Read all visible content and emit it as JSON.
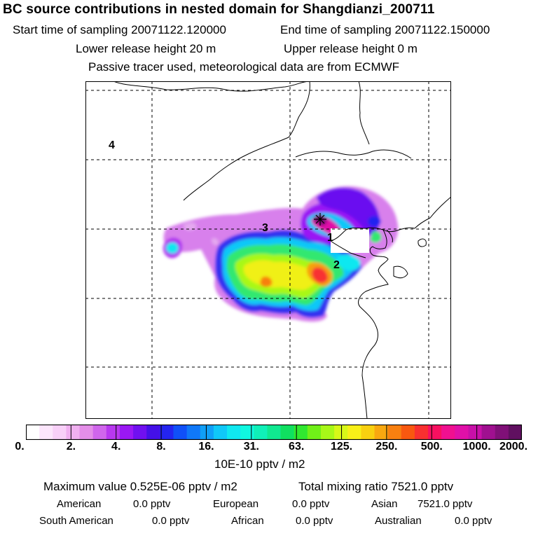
{
  "header": {
    "title": "BC  source contributions in nested domain for Shangdianzi_200711",
    "start_label": "Start time of sampling 20071122.120000",
    "end_label": "End time of sampling 20071122.150000",
    "lower_label": "Lower release height   20 m",
    "upper_label": "Upper release height    0 m",
    "tracer_label": "Passive tracer used, meteorological data are from ECMWF"
  },
  "map": {
    "region_labels": [
      "1",
      "2",
      "3",
      "4"
    ],
    "receptor_marker": "receptor-star-icon",
    "gridlines": "dashed"
  },
  "colorbar": {
    "tick_labels": [
      "0.",
      "2.",
      "4.",
      "8.",
      "16.",
      "31.",
      "63.",
      "125.",
      "250.",
      "500.",
      "1000.",
      "2000."
    ],
    "units": "10E-10 pptv / m2",
    "colors": [
      "#ffffff",
      "#fce6fc",
      "#f8d0f8",
      "#f0b0f0",
      "#e48ee8",
      "#d066ec",
      "#b838f0",
      "#9a18f4",
      "#7010f0",
      "#4410e8",
      "#2424f0",
      "#1050f8",
      "#1078f8",
      "#10a0f8",
      "#10c8f8",
      "#10e8f0",
      "#10f8e0",
      "#10f0b8",
      "#10e890",
      "#10e060",
      "#30e830",
      "#70f018",
      "#a8f818",
      "#d8f818",
      "#f8f018",
      "#f8d010",
      "#f8a810",
      "#f88010",
      "#f85810",
      "#f83030",
      "#f81060",
      "#f01090",
      "#e010a8",
      "#c810a8",
      "#a01090",
      "#801078",
      "#601060"
    ]
  },
  "summary": {
    "max_label": "Maximum value  0.525E-06 pptv / m2",
    "total_label": "Total mixing ratio     7521.0 pptv",
    "american_label": "American",
    "american_value": "0.0 pptv",
    "european_label": "European",
    "european_value": "0.0 pptv",
    "asian_label": "Asian",
    "asian_value": "7521.0 pptv",
    "south_american_label": "South American",
    "south_american_value": "0.0 pptv",
    "african_label": "African",
    "african_value": "0.0 pptv",
    "australian_label": "Australian",
    "australian_value": "0.0 pptv"
  }
}
